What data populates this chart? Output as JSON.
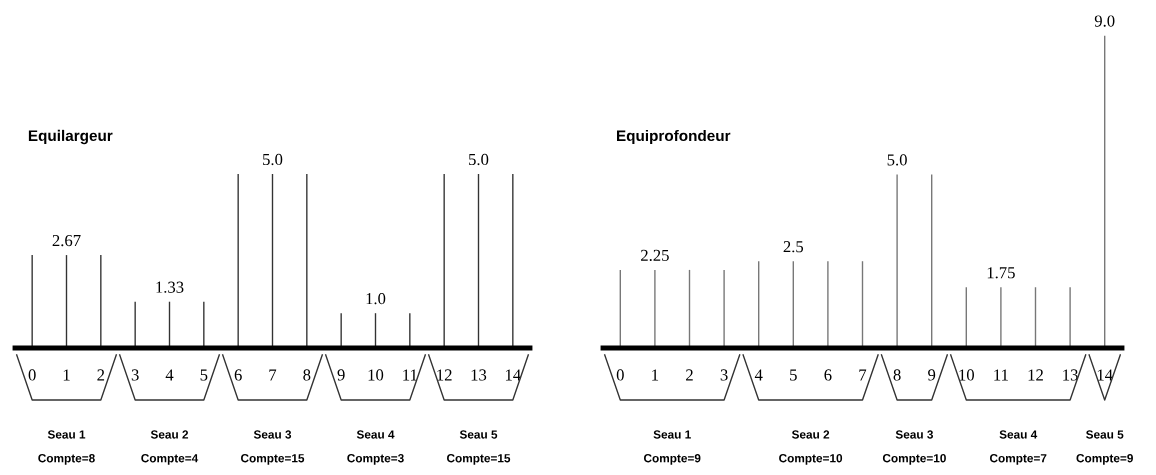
{
  "chart_data": [
    {
      "type": "bar",
      "title": "Equilargeur",
      "categories": [
        "0",
        "1",
        "2",
        "3",
        "4",
        "5",
        "6",
        "7",
        "8",
        "9",
        "10",
        "11",
        "12",
        "13",
        "14"
      ],
      "values": [
        2.67,
        2.67,
        2.67,
        1.33,
        1.33,
        1.33,
        5.0,
        5.0,
        5.0,
        1.0,
        1.0,
        1.0,
        5.0,
        5.0,
        5.0
      ],
      "color": "#333333",
      "value_labels": [
        null,
        "2.67",
        null,
        null,
        "1.33",
        null,
        null,
        "5.0",
        null,
        null,
        "1.0",
        null,
        null,
        "5.0",
        null
      ],
      "annotations": [
        "Seau 1\n\nCompte=8",
        "Seau 2\n\nCompte=4",
        "Seau 3\n\nCompte=15",
        "Seau 4\n\nCompte=3",
        "Seau 5\n\nCompte=15"
      ]
    },
    {
      "type": "bar",
      "title": "Equiprofondeur",
      "categories": [
        "0",
        "1",
        "2",
        "3",
        "4",
        "5",
        "6",
        "7",
        "8",
        "9",
        "10",
        "11",
        "12",
        "13",
        "14"
      ],
      "values": [
        2.25,
        2.25,
        2.25,
        2.25,
        2.5,
        2.5,
        2.5,
        2.5,
        5.0,
        5.0,
        1.75,
        1.75,
        1.75,
        1.75,
        9.0
      ],
      "color": "#777777",
      "value_labels": [
        null,
        "2.25",
        null,
        null,
        null,
        "2.5",
        null,
        null,
        "5.0",
        null,
        null,
        "1.75",
        null,
        null,
        "9.0"
      ],
      "annotations": [
        "Seau 1\n\nCompte=9",
        "Seau 2\n\nCompte=10",
        "Seau 3\n\nCompte=10",
        "Seau 4\n\nCompte=7",
        "Seau 5\n\nCompte=9"
      ]
    }
  ]
}
